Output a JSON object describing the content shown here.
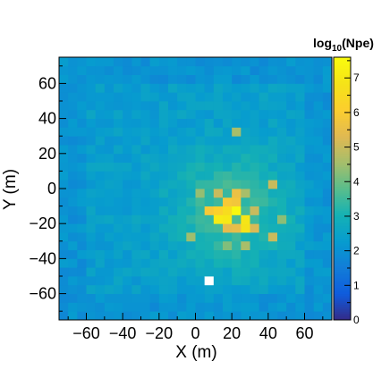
{
  "chart_data": {
    "type": "heatmap",
    "xlabel": "X (m)",
    "ylabel": "Y (m)",
    "colorbar_title": {
      "base": "log",
      "sub": "10",
      "rest": "(Npe)"
    },
    "xlim": [
      -75,
      75
    ],
    "ylim": [
      -75,
      75
    ],
    "zlim": [
      0,
      7.6
    ],
    "x_ticks": [
      -60,
      -40,
      -20,
      0,
      20,
      40,
      60
    ],
    "x_tick_labels": [
      "−60",
      "−40",
      "−20",
      "0",
      "20",
      "40",
      "60"
    ],
    "y_ticks": [
      -60,
      -40,
      -20,
      0,
      20,
      40,
      60
    ],
    "y_tick_labels": [
      "−60",
      "−40",
      "−20",
      "0",
      "20",
      "40",
      "60"
    ],
    "z_ticks": [
      0,
      1,
      2,
      3,
      4,
      5,
      6,
      7
    ],
    "z_tick_labels": [
      "0",
      "1",
      "2",
      "3",
      "4",
      "5",
      "6",
      "7"
    ],
    "bin_size": 5,
    "peak": {
      "x": 20,
      "y": -12,
      "log10_npe": 7.5
    },
    "hotspots": [
      {
        "x": 12.5,
        "y": -17.5,
        "v": 7.1
      },
      {
        "x": 17.5,
        "y": -17.5,
        "v": 7.0
      },
      {
        "x": 22.5,
        "y": -12.5,
        "v": 7.5
      },
      {
        "x": 27.5,
        "y": -17.5,
        "v": 6.9
      },
      {
        "x": 27.5,
        "y": -22.5,
        "v": 6.8
      },
      {
        "x": 17.5,
        "y": -12.5,
        "v": 6.6
      },
      {
        "x": 12.5,
        "y": -12.5,
        "v": 6.2
      },
      {
        "x": 7.5,
        "y": -12.5,
        "v": 5.9
      },
      {
        "x": 17.5,
        "y": -7.5,
        "v": 5.9
      },
      {
        "x": 22.5,
        "y": -7.5,
        "v": 5.8
      },
      {
        "x": 22.5,
        "y": -2.5,
        "v": 5.6
      },
      {
        "x": 12.5,
        "y": -2.5,
        "v": 5.0
      },
      {
        "x": 32.5,
        "y": -12.5,
        "v": 5.0
      },
      {
        "x": 32.5,
        "y": -22.5,
        "v": 5.2
      },
      {
        "x": 42.5,
        "y": -27.5,
        "v": 5.0
      },
      {
        "x": 27.5,
        "y": -2.5,
        "v": 4.6
      },
      {
        "x": 2.5,
        "y": -2.5,
        "v": 4.4
      },
      {
        "x": 17.5,
        "y": -22.5,
        "v": 5.4
      },
      {
        "x": 22.5,
        "y": -22.5,
        "v": 5.5
      },
      {
        "x": 42.5,
        "y": 2.5,
        "v": 5.0
      },
      {
        "x": 22.5,
        "y": 32.5,
        "v": 4.6
      },
      {
        "x": 47.5,
        "y": -17.5,
        "v": 4.3
      },
      {
        "x": -2.5,
        "y": -27.5,
        "v": 4.5
      },
      {
        "x": 27.5,
        "y": -32.5,
        "v": 4.6
      },
      {
        "x": 17.5,
        "y": -32.5,
        "v": 4.2
      }
    ],
    "empty_bins": [
      {
        "x": 7.5,
        "y": -52.5
      }
    ],
    "colormap": "parula"
  }
}
